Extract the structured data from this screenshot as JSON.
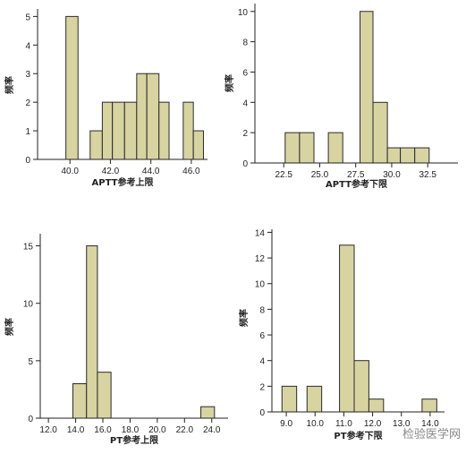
{
  "chart_data": [
    {
      "type": "bar",
      "xlabel": "APTT参考上限",
      "ylabel": "频率",
      "x_ticks": [
        "40.0",
        "42.0",
        "44.0",
        "46.0"
      ],
      "x_tick_values": [
        40,
        42,
        44,
        46
      ],
      "y_ticks": [
        0,
        1,
        2,
        3,
        4,
        5
      ],
      "xlim": [
        38.4,
        46.8
      ],
      "ylim": [
        0,
        5.2
      ],
      "bins": [
        {
          "x0": 39.8,
          "x1": 40.4,
          "value": 5
        },
        {
          "x0": 41.0,
          "x1": 41.6,
          "value": 1
        },
        {
          "x0": 41.6,
          "x1": 42.1,
          "value": 2
        },
        {
          "x0": 42.1,
          "x1": 42.7,
          "value": 2
        },
        {
          "x0": 42.7,
          "x1": 43.3,
          "value": 2
        },
        {
          "x0": 43.3,
          "x1": 43.8,
          "value": 3
        },
        {
          "x0": 43.8,
          "x1": 44.4,
          "value": 3
        },
        {
          "x0": 44.4,
          "x1": 44.9,
          "value": 2
        },
        {
          "x0": 45.6,
          "x1": 46.1,
          "value": 2
        },
        {
          "x0": 46.1,
          "x1": 46.6,
          "value": 1
        }
      ]
    },
    {
      "type": "bar",
      "xlabel": "APTT参考下限",
      "ylabel": "频率",
      "x_ticks": [
        "22.5",
        "25.0",
        "27.5",
        "30.0",
        "32.5"
      ],
      "x_tick_values": [
        22.5,
        25.0,
        27.5,
        30.0,
        32.5
      ],
      "y_ticks": [
        0,
        2,
        4,
        6,
        8,
        10
      ],
      "xlim": [
        20.5,
        34.6
      ],
      "ylim": [
        0,
        10.4
      ],
      "bins": [
        {
          "x0": 22.6,
          "x1": 23.6,
          "value": 2
        },
        {
          "x0": 23.6,
          "x1": 24.6,
          "value": 2
        },
        {
          "x0": 25.6,
          "x1": 26.6,
          "value": 2
        },
        {
          "x0": 27.8,
          "x1": 28.7,
          "value": 10
        },
        {
          "x0": 28.7,
          "x1": 29.7,
          "value": 4
        },
        {
          "x0": 29.7,
          "x1": 30.6,
          "value": 1
        },
        {
          "x0": 30.6,
          "x1": 31.6,
          "value": 1
        },
        {
          "x0": 31.6,
          "x1": 32.6,
          "value": 1
        }
      ]
    },
    {
      "type": "bar",
      "xlabel": "PT参考上限",
      "ylabel": "频率",
      "x_ticks": [
        "12.0",
        "14.0",
        "16.0",
        "18.0",
        "20.0",
        "22.0",
        "24.0"
      ],
      "x_tick_values": [
        12,
        14,
        16,
        18,
        20,
        22,
        24
      ],
      "y_ticks": [
        0,
        5,
        10,
        15
      ],
      "xlim": [
        11.4,
        25.2
      ],
      "ylim": [
        0,
        15.9
      ],
      "bins": [
        {
          "x0": 13.8,
          "x1": 14.8,
          "value": 3
        },
        {
          "x0": 14.8,
          "x1": 15.6,
          "value": 15
        },
        {
          "x0": 15.6,
          "x1": 16.6,
          "value": 4
        },
        {
          "x0": 23.2,
          "x1": 24.2,
          "value": 1
        }
      ]
    },
    {
      "type": "bar",
      "xlabel": "PT参考下限",
      "ylabel": "频率",
      "x_ticks": [
        "9.0",
        "10.0",
        "11.0",
        "12.0",
        "13.0",
        "14.0"
      ],
      "x_tick_values": [
        9,
        10,
        11,
        12,
        13,
        14
      ],
      "y_ticks": [
        0,
        2,
        4,
        6,
        8,
        10,
        12,
        14
      ],
      "xlim": [
        8.5,
        14.5
      ],
      "ylim": [
        0,
        14.1
      ],
      "bins": [
        {
          "x0": 8.85,
          "x1": 9.36,
          "value": 2
        },
        {
          "x0": 9.72,
          "x1": 10.23,
          "value": 2
        },
        {
          "x0": 10.85,
          "x1": 11.36,
          "value": 13
        },
        {
          "x0": 11.36,
          "x1": 11.87,
          "value": 4
        },
        {
          "x0": 11.87,
          "x1": 12.38,
          "value": 1
        },
        {
          "x0": 13.72,
          "x1": 14.23,
          "value": 1
        }
      ]
    }
  ],
  "style": {
    "bar_fill": "#d8d4a2",
    "bar_stroke": "#2a2a2a",
    "axis_color": "#222222"
  },
  "watermark": "检验医学网"
}
